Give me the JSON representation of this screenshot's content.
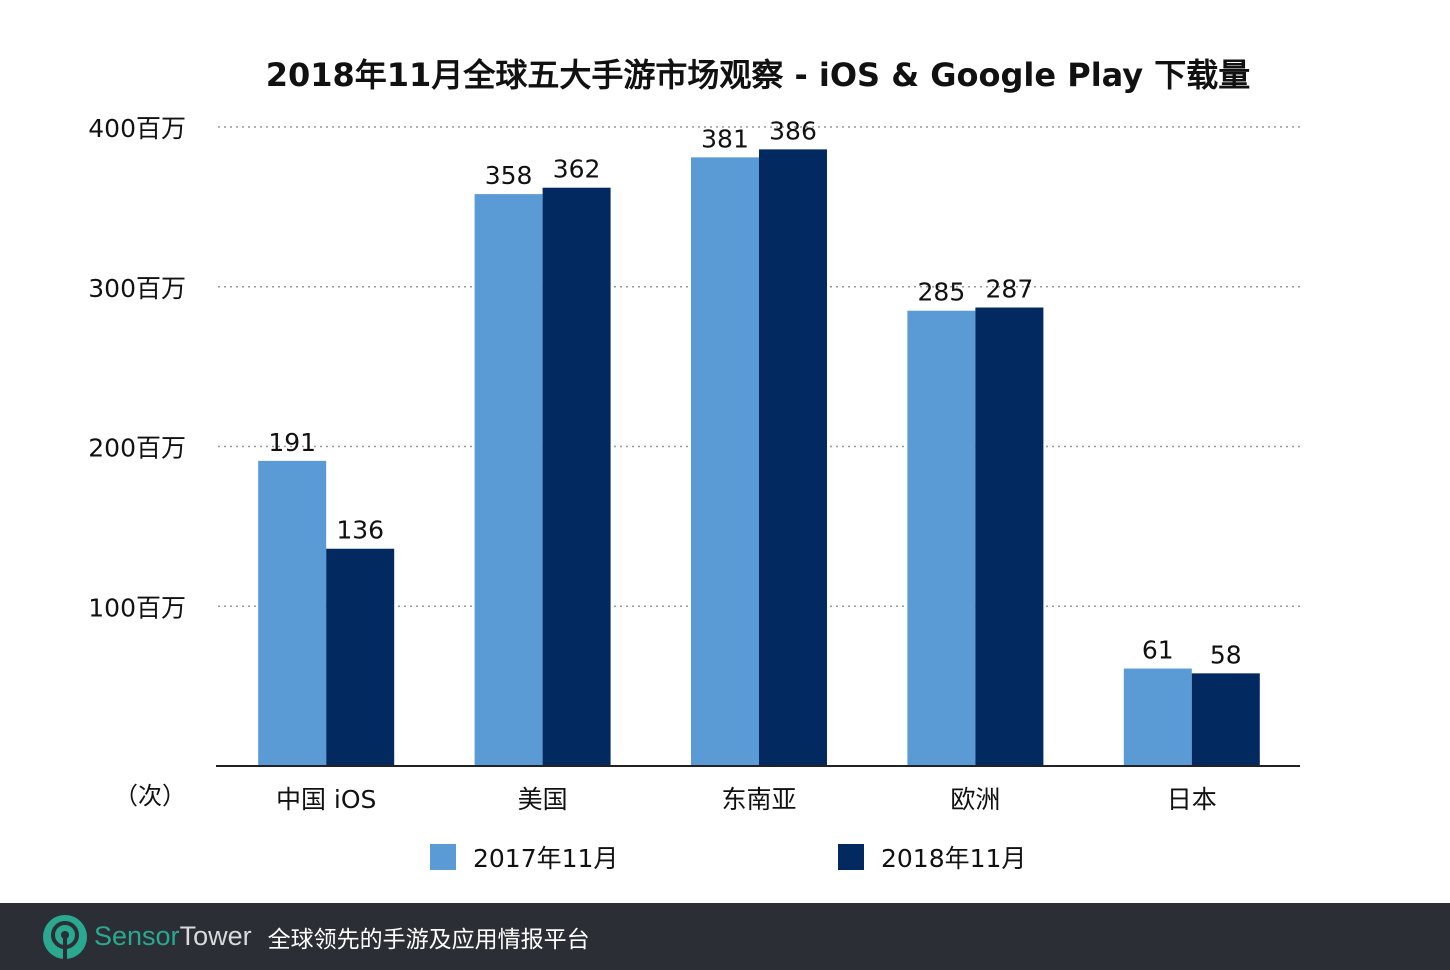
{
  "chart_data": {
    "type": "bar",
    "title": "2018年11月全球五大手游市场观察 - iOS & Google Play 下载量",
    "categories": [
      "中国 iOS",
      "美国",
      "东南亚",
      "欧洲",
      "日本"
    ],
    "series": [
      {
        "name": "2017年11月",
        "color": "#5b9bd5",
        "values": [
          191,
          358,
          381,
          285,
          61
        ]
      },
      {
        "name": "2018年11月",
        "color": "#022a61",
        "values": [
          136,
          362,
          386,
          287,
          58
        ]
      }
    ],
    "ylim": [
      0,
      400
    ],
    "yticks": [
      100,
      200,
      300,
      400
    ],
    "ytick_labels": [
      "100百万",
      "200百万",
      "300百万",
      "400百万"
    ],
    "ylabel": "（次）",
    "grid": "dotted horizontal",
    "legend_position": "bottom"
  },
  "footer": {
    "brand_part1": "Sensor",
    "brand_part2": "Tower",
    "slogan": "全球领先的手游及应用情报平台",
    "logo_color": "#2aa890",
    "background": "#2b2e35"
  }
}
